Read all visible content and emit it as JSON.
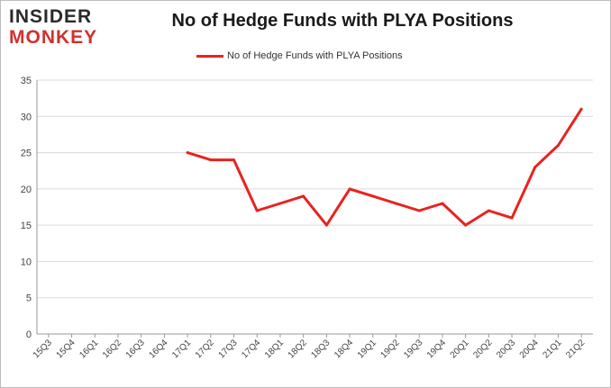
{
  "logo": {
    "line1": "INSIDER",
    "line2": "MONKEY"
  },
  "colors": {
    "series": "#e8231e",
    "grid": "#d9d9d9",
    "axis": "#999999",
    "logo_red": "#d0312d"
  },
  "chart_data": {
    "type": "line",
    "title": "No of Hedge Funds with PLYA Positions",
    "xlabel": "",
    "ylabel": "",
    "ylim": [
      0,
      35
    ],
    "yticks": [
      0,
      5,
      10,
      15,
      20,
      25,
      30,
      35
    ],
    "grid": "horizontal",
    "legend": "top-center",
    "categories": [
      "15Q3",
      "15Q4",
      "16Q1",
      "16Q2",
      "16Q3",
      "16Q4",
      "17Q1",
      "17Q2",
      "17Q3",
      "17Q4",
      "18Q1",
      "18Q2",
      "18Q3",
      "18Q4",
      "19Q1",
      "19Q2",
      "19Q3",
      "19Q4",
      "20Q1",
      "20Q2",
      "20Q3",
      "20Q4",
      "21Q1",
      "21Q2"
    ],
    "series": [
      {
        "name": "No of Hedge Funds with PLYA Positions",
        "values": [
          null,
          null,
          null,
          null,
          null,
          null,
          25,
          24,
          24,
          17,
          18,
          19,
          15,
          20,
          19,
          18,
          17,
          18,
          15,
          17,
          16,
          23,
          26,
          31
        ]
      }
    ]
  }
}
